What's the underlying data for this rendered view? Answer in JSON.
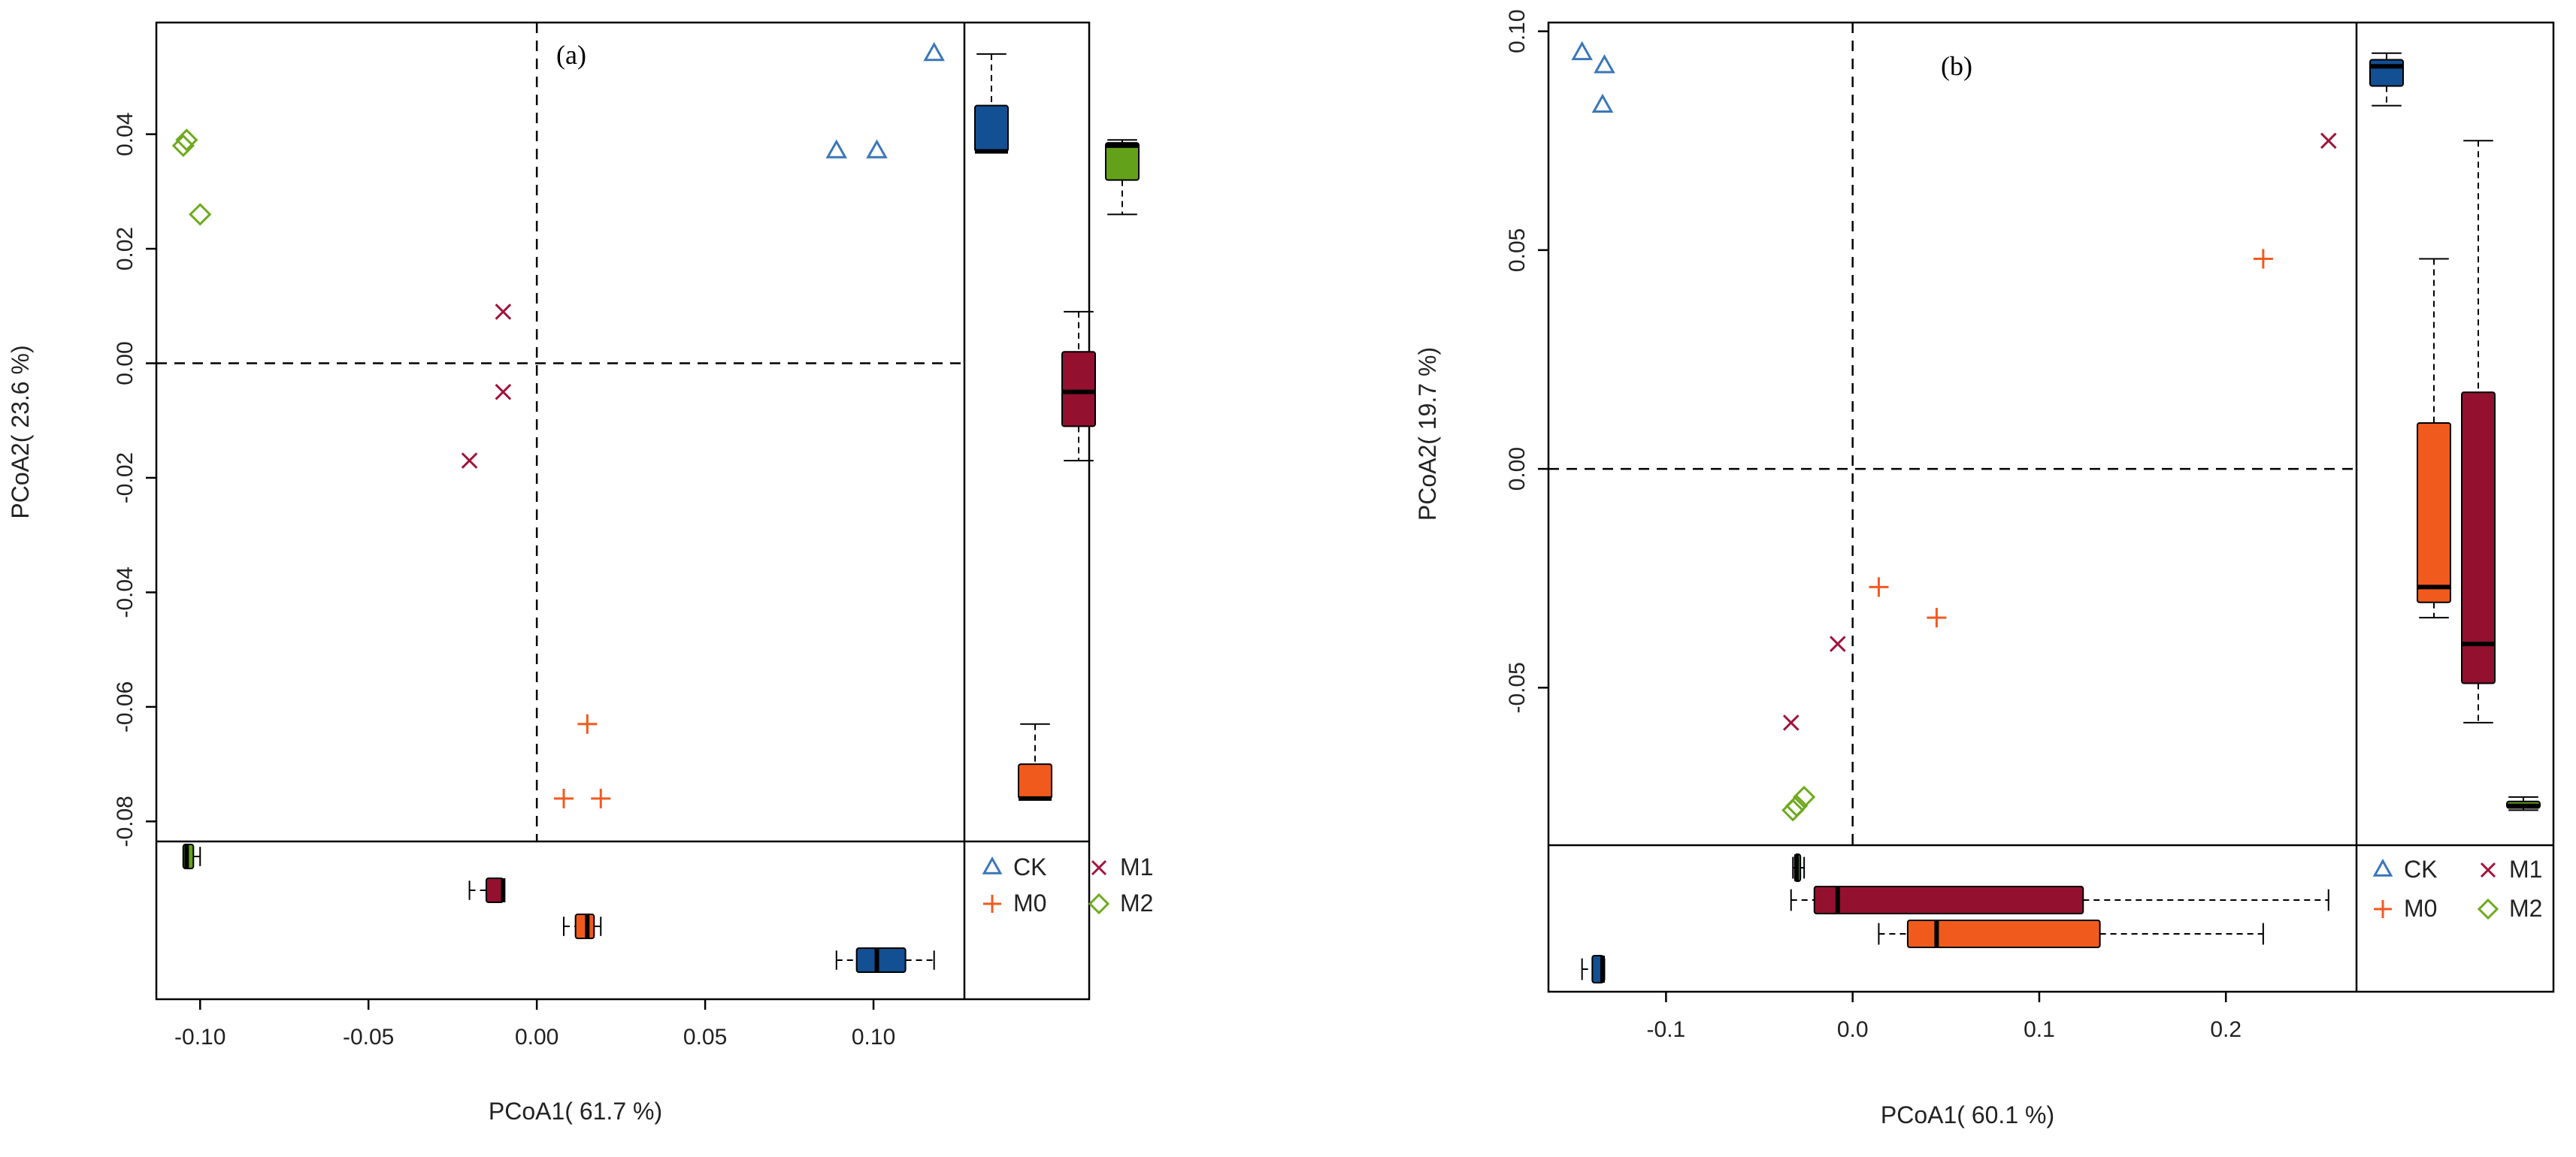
{
  "chart_data": [
    {
      "type": "scatter",
      "panel_label": "(a)",
      "xlabel": "PCoA1( 61.7 %)",
      "ylabel": "PCoA2( 23.6 %)",
      "xlim": [
        -0.113,
        0.127
      ],
      "ylim": [
        -0.0835,
        0.0595
      ],
      "xticks": [
        -0.1,
        -0.05,
        0.0,
        0.05,
        0.1
      ],
      "xtick_labels": [
        "-0.10",
        "-0.05",
        "0.00",
        "0.05",
        "0.10"
      ],
      "yticks": [
        0.04,
        0.02,
        0.0,
        -0.02,
        -0.04,
        -0.06,
        -0.08
      ],
      "ytick_labels": [
        "0.04",
        "0.02",
        "0.00",
        "-0.02",
        "-0.04",
        "-0.06",
        "-0.08"
      ],
      "series": [
        {
          "name": "CK",
          "points": [
            [
              0.089,
              0.037
            ],
            [
              0.101,
              0.037
            ],
            [
              0.118,
              0.054
            ]
          ]
        },
        {
          "name": "M0",
          "points": [
            [
              0.015,
              -0.063
            ],
            [
              0.008,
              -0.076
            ],
            [
              0.019,
              -0.076
            ]
          ]
        },
        {
          "name": "M1",
          "points": [
            [
              -0.01,
              0.009
            ],
            [
              -0.01,
              -0.005
            ],
            [
              -0.02,
              -0.017
            ]
          ]
        },
        {
          "name": "M2",
          "points": [
            [
              -0.104,
              0.039
            ],
            [
              -0.105,
              0.038
            ],
            [
              -0.1,
              0.026
            ]
          ]
        }
      ],
      "y_boxplots": [
        {
          "name": "CK",
          "min": 0.037,
          "q1": 0.037,
          "median": 0.037,
          "q3": 0.045,
          "max": 0.054
        },
        {
          "name": "M1",
          "min": -0.017,
          "q1": -0.011,
          "median": -0.005,
          "q3": 0.002,
          "max": 0.009
        },
        {
          "name": "M0",
          "min": -0.076,
          "q1": -0.076,
          "median": -0.076,
          "q3": -0.07,
          "max": -0.063
        },
        {
          "name": "M2",
          "min": 0.026,
          "q1": 0.032,
          "median": 0.038,
          "q3": 0.0385,
          "max": 0.039
        }
      ],
      "x_boxplots": [
        {
          "name": "M2",
          "min": -0.105,
          "q1": -0.105,
          "median": -0.104,
          "q3": -0.102,
          "max": -0.1
        },
        {
          "name": "M1",
          "min": -0.02,
          "q1": -0.015,
          "median": -0.01,
          "q3": -0.01,
          "max": -0.01
        },
        {
          "name": "M0",
          "min": 0.008,
          "q1": 0.0115,
          "median": 0.015,
          "q3": 0.017,
          "max": 0.019
        },
        {
          "name": "CK",
          "min": 0.089,
          "q1": 0.095,
          "median": 0.101,
          "q3": 0.1095,
          "max": 0.118
        }
      ]
    },
    {
      "type": "scatter",
      "panel_label": "(b)",
      "xlabel": "PCoA1( 60.1 %)",
      "ylabel": "PCoA2( 19.7 %)",
      "xlim": [
        -0.163,
        0.27
      ],
      "ylim": [
        -0.086,
        0.102
      ],
      "xticks": [
        -0.1,
        0.0,
        0.1,
        0.2
      ],
      "xtick_labels": [
        "-0.1",
        "0.0",
        "0.1",
        "0.2"
      ],
      "yticks": [
        0.1,
        0.05,
        0.0,
        -0.05
      ],
      "ytick_labels": [
        "0.10",
        "0.05",
        "0.00",
        "-0.05"
      ],
      "series": [
        {
          "name": "CK",
          "points": [
            [
              -0.145,
              0.095
            ],
            [
              -0.133,
              0.092
            ],
            [
              -0.134,
              0.083
            ]
          ]
        },
        {
          "name": "M0",
          "points": [
            [
              0.22,
              0.048
            ],
            [
              0.014,
              -0.027
            ],
            [
              0.045,
              -0.034
            ]
          ]
        },
        {
          "name": "M1",
          "points": [
            [
              0.255,
              0.075
            ],
            [
              -0.008,
              -0.04
            ],
            [
              -0.033,
              -0.058
            ]
          ]
        },
        {
          "name": "M2",
          "points": [
            [
              -0.026,
              -0.075
            ],
            [
              -0.03,
              -0.077
            ],
            [
              -0.032,
              -0.078
            ]
          ]
        }
      ],
      "y_boxplots": [
        {
          "name": "CK",
          "min": 0.083,
          "q1": 0.0875,
          "median": 0.092,
          "q3": 0.0935,
          "max": 0.095
        },
        {
          "name": "M0",
          "min": -0.034,
          "q1": -0.0305,
          "median": -0.027,
          "q3": 0.0105,
          "max": 0.048
        },
        {
          "name": "M1",
          "min": -0.058,
          "q1": -0.049,
          "median": -0.04,
          "q3": 0.0175,
          "max": 0.075
        },
        {
          "name": "M2",
          "min": -0.078,
          "q1": -0.0775,
          "median": -0.077,
          "q3": -0.076,
          "max": -0.075
        }
      ],
      "x_boxplots": [
        {
          "name": "M2",
          "min": -0.032,
          "q1": -0.031,
          "median": -0.03,
          "q3": -0.028,
          "max": -0.026
        },
        {
          "name": "M1",
          "min": -0.033,
          "q1": -0.0205,
          "median": -0.008,
          "q3": 0.1235,
          "max": 0.255
        },
        {
          "name": "M0",
          "min": 0.014,
          "q1": 0.0295,
          "median": 0.045,
          "q3": 0.1325,
          "max": 0.22
        },
        {
          "name": "CK",
          "min": -0.145,
          "q1": -0.1395,
          "median": -0.134,
          "q3": -0.1335,
          "max": -0.133
        }
      ]
    }
  ],
  "legend": [
    {
      "name": "CK",
      "label": "CK"
    },
    {
      "name": "M1",
      "label": "M1"
    },
    {
      "name": "M0",
      "label": "M0"
    },
    {
      "name": "M2",
      "label": "M2"
    }
  ],
  "colors": {
    "CK": {
      "point": "#3a77b8",
      "fill": "#134f93"
    },
    "M0": {
      "point": "#f15a1f",
      "fill": "#f05a1c"
    },
    "M1": {
      "point": "#a0143c",
      "fill": "#94102f"
    },
    "M2": {
      "point": "#6faa1e",
      "fill": "#63a11a"
    }
  }
}
